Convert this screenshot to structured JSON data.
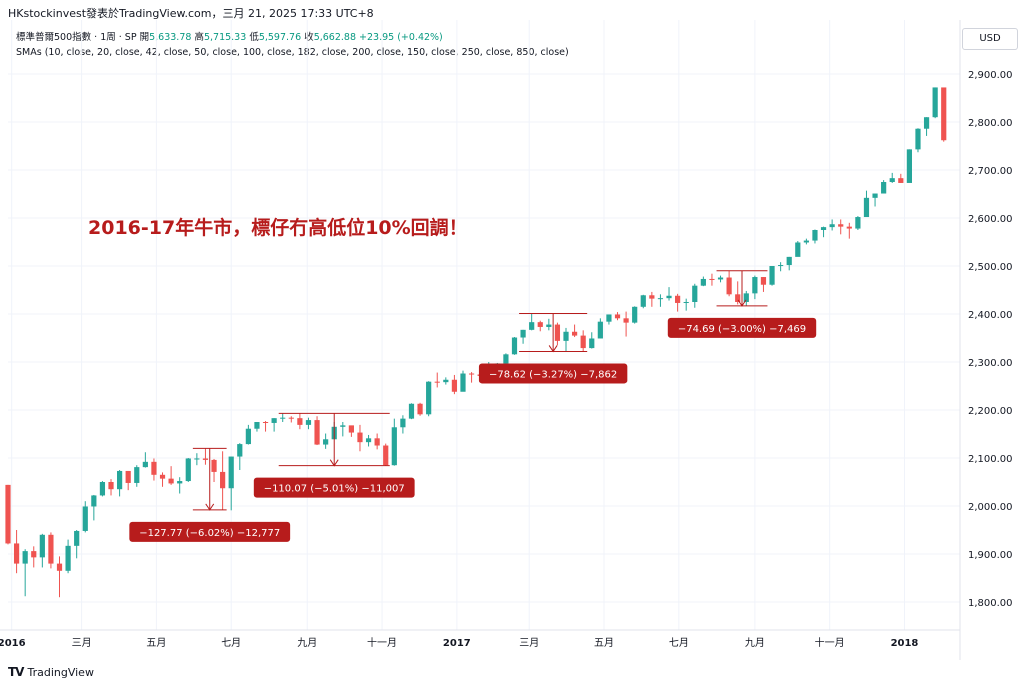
{
  "header": {
    "source_line": "HKstockinvest發表於TradingView.com，三月 21, 2025 17:33 UTC+8"
  },
  "legend": {
    "symbol": "標準普爾500指數 · 1周 · SP",
    "open_label": "開",
    "open_value": "5,633.78",
    "high_label": "高",
    "high_value": "5,715.33",
    "low_label": "低",
    "low_value": "5,597.76",
    "close_label": "收",
    "close_value": "5,662.88",
    "change_value": "+23.95 (+0.42%)",
    "sma_line": "SMAs (10, close, 20, close, 42, close, 50, close, 100, close, 182, close, 200, close, 150, close, 250, close, 850, close)"
  },
  "currency_button": "USD",
  "footer": {
    "logo_text": "TradingView",
    "logo_icon": "TV"
  },
  "colors": {
    "up": "#26a69a",
    "down": "#ef5350",
    "annotation": "#b71c1c",
    "measure_line": "#b71c1c",
    "grid": "#f0f3fa",
    "axis_text": "#131722"
  },
  "chart_data": {
    "type": "candlestick",
    "title": "2016-17年牛市，標仔冇高低位10%回調！",
    "ylim": [
      1750,
      2950
    ],
    "y_ticks": [
      1800,
      1900,
      2000,
      2100,
      2200,
      2300,
      2400,
      2500,
      2600,
      2700,
      2800,
      2900
    ],
    "y_tick_labels": [
      "1,800.00",
      "1,900.00",
      "2,000.00",
      "2,100.00",
      "2,200.00",
      "2,300.00",
      "2,400.00",
      "2,500.00",
      "2,600.00",
      "2,700.00",
      "2,800.00",
      "2,900.00"
    ],
    "x_ticks": [
      {
        "label": "2016",
        "date": "2016-01-04",
        "bold": true
      },
      {
        "label": "三月",
        "date": "2016-03-01",
        "bold": false
      },
      {
        "label": "五月",
        "date": "2016-05-01",
        "bold": false
      },
      {
        "label": "七月",
        "date": "2016-07-01",
        "bold": false
      },
      {
        "label": "九月",
        "date": "2016-09-01",
        "bold": false
      },
      {
        "label": "十一月",
        "date": "2016-11-01",
        "bold": false
      },
      {
        "label": "2017",
        "date": "2017-01-01",
        "bold": true
      },
      {
        "label": "三月",
        "date": "2017-03-01",
        "bold": false
      },
      {
        "label": "五月",
        "date": "2017-05-01",
        "bold": false
      },
      {
        "label": "七月",
        "date": "2017-07-01",
        "bold": false
      },
      {
        "label": "九月",
        "date": "2017-09-01",
        "bold": false
      },
      {
        "label": "十一月",
        "date": "2017-11-01",
        "bold": false
      },
      {
        "label": "2018",
        "date": "2018-01-01",
        "bold": true
      }
    ],
    "x_range": [
      "2016-01-01",
      "2018-02-12"
    ],
    "candles": [
      {
        "date": "2016-01-01",
        "o": 2044,
        "h": 2044,
        "c": 1922,
        "l": 1920
      },
      {
        "date": "2016-01-08",
        "o": 1922,
        "h": 1950,
        "c": 1880,
        "l": 1860
      },
      {
        "date": "2016-01-15",
        "o": 1880,
        "h": 1910,
        "c": 1906,
        "l": 1812
      },
      {
        "date": "2016-01-22",
        "o": 1906,
        "h": 1916,
        "c": 1893,
        "l": 1872
      },
      {
        "date": "2016-01-29",
        "o": 1893,
        "h": 1942,
        "c": 1940,
        "l": 1872
      },
      {
        "date": "2016-02-05",
        "o": 1940,
        "h": 1945,
        "c": 1880,
        "l": 1870
      },
      {
        "date": "2016-02-12",
        "o": 1880,
        "h": 1895,
        "c": 1865,
        "l": 1810
      },
      {
        "date": "2016-02-19",
        "o": 1865,
        "h": 1930,
        "c": 1917,
        "l": 1860
      },
      {
        "date": "2016-02-26",
        "o": 1917,
        "h": 1950,
        "c": 1948,
        "l": 1891
      },
      {
        "date": "2016-03-04",
        "o": 1948,
        "h": 2010,
        "c": 1999,
        "l": 1945
      },
      {
        "date": "2016-03-11",
        "o": 1999,
        "h": 2023,
        "c": 2022,
        "l": 1970
      },
      {
        "date": "2016-03-18",
        "o": 2022,
        "h": 2052,
        "c": 2050,
        "l": 2020
      },
      {
        "date": "2016-03-25",
        "o": 2050,
        "h": 2056,
        "c": 2035,
        "l": 2022
      },
      {
        "date": "2016-04-01",
        "o": 2035,
        "h": 2075,
        "c": 2073,
        "l": 2020
      },
      {
        "date": "2016-04-08",
        "o": 2073,
        "h": 2073,
        "c": 2048,
        "l": 2033
      },
      {
        "date": "2016-04-15",
        "o": 2048,
        "h": 2085,
        "c": 2081,
        "l": 2040
      },
      {
        "date": "2016-04-22",
        "o": 2081,
        "h": 2112,
        "c": 2092,
        "l": 2080
      },
      {
        "date": "2016-04-29",
        "o": 2092,
        "h": 2099,
        "c": 2065,
        "l": 2053
      },
      {
        "date": "2016-05-06",
        "o": 2065,
        "h": 2070,
        "c": 2057,
        "l": 2040
      },
      {
        "date": "2016-05-13",
        "o": 2057,
        "h": 2083,
        "c": 2047,
        "l": 2044
      },
      {
        "date": "2016-05-20",
        "o": 2047,
        "h": 2060,
        "c": 2052,
        "l": 2026
      },
      {
        "date": "2016-05-27",
        "o": 2052,
        "h": 2100,
        "c": 2099,
        "l": 2050
      },
      {
        "date": "2016-06-03",
        "o": 2099,
        "h": 2110,
        "c": 2099,
        "l": 2085
      },
      {
        "date": "2016-06-10",
        "o": 2099,
        "h": 2120,
        "c": 2096,
        "l": 2086
      },
      {
        "date": "2016-06-17",
        "o": 2096,
        "h": 2098,
        "c": 2071,
        "l": 2050
      },
      {
        "date": "2016-06-24",
        "o": 2071,
        "h": 2114,
        "c": 2037,
        "l": 1992
      },
      {
        "date": "2016-07-01",
        "o": 2037,
        "h": 2103,
        "c": 2103,
        "l": 1991
      },
      {
        "date": "2016-07-08",
        "o": 2103,
        "h": 2131,
        "c": 2129,
        "l": 2075
      },
      {
        "date": "2016-07-15",
        "o": 2129,
        "h": 2169,
        "c": 2161,
        "l": 2128
      },
      {
        "date": "2016-07-22",
        "o": 2161,
        "h": 2175,
        "c": 2175,
        "l": 2155
      },
      {
        "date": "2016-07-29",
        "o": 2175,
        "h": 2177,
        "c": 2173,
        "l": 2155
      },
      {
        "date": "2016-08-05",
        "o": 2173,
        "h": 2183,
        "c": 2183,
        "l": 2155
      },
      {
        "date": "2016-08-12",
        "o": 2183,
        "h": 2193,
        "c": 2184,
        "l": 2175
      },
      {
        "date": "2016-08-19",
        "o": 2184,
        "h": 2187,
        "c": 2183,
        "l": 2174
      },
      {
        "date": "2016-08-26",
        "o": 2183,
        "h": 2193,
        "c": 2169,
        "l": 2160
      },
      {
        "date": "2016-09-02",
        "o": 2169,
        "h": 2184,
        "c": 2179,
        "l": 2160
      },
      {
        "date": "2016-09-09",
        "o": 2179,
        "h": 2187,
        "c": 2128,
        "l": 2127
      },
      {
        "date": "2016-09-16",
        "o": 2128,
        "h": 2151,
        "c": 2139,
        "l": 2119
      },
      {
        "date": "2016-09-23",
        "o": 2139,
        "h": 2175,
        "c": 2165,
        "l": 2139
      },
      {
        "date": "2016-09-30",
        "o": 2165,
        "h": 2175,
        "c": 2168,
        "l": 2145
      },
      {
        "date": "2016-10-07",
        "o": 2168,
        "h": 2165,
        "c": 2153,
        "l": 2144
      },
      {
        "date": "2016-10-14",
        "o": 2153,
        "h": 2169,
        "c": 2133,
        "l": 2114
      },
      {
        "date": "2016-10-21",
        "o": 2133,
        "h": 2148,
        "c": 2141,
        "l": 2124
      },
      {
        "date": "2016-10-28",
        "o": 2141,
        "h": 2151,
        "c": 2126,
        "l": 2118
      },
      {
        "date": "2016-11-04",
        "o": 2126,
        "h": 2130,
        "c": 2085,
        "l": 2084
      },
      {
        "date": "2016-11-11",
        "o": 2085,
        "h": 2182,
        "c": 2164,
        "l": 2084
      },
      {
        "date": "2016-11-18",
        "o": 2164,
        "h": 2189,
        "c": 2182,
        "l": 2151
      },
      {
        "date": "2016-11-25",
        "o": 2182,
        "h": 2214,
        "c": 2213,
        "l": 2181
      },
      {
        "date": "2016-12-02",
        "o": 2213,
        "h": 2215,
        "c": 2191,
        "l": 2188
      },
      {
        "date": "2016-12-09",
        "o": 2191,
        "h": 2260,
        "c": 2259,
        "l": 2187
      },
      {
        "date": "2016-12-16",
        "o": 2259,
        "h": 2278,
        "c": 2258,
        "l": 2247
      },
      {
        "date": "2016-12-23",
        "o": 2258,
        "h": 2268,
        "c": 2263,
        "l": 2253
      },
      {
        "date": "2016-12-30",
        "o": 2263,
        "h": 2273,
        "c": 2238,
        "l": 2233
      },
      {
        "date": "2017-01-06",
        "o": 2238,
        "h": 2282,
        "c": 2276,
        "l": 2245
      },
      {
        "date": "2017-01-13",
        "o": 2276,
        "h": 2279,
        "c": 2274,
        "l": 2257
      },
      {
        "date": "2017-01-20",
        "o": 2274,
        "h": 2276,
        "c": 2271,
        "l": 2258
      },
      {
        "date": "2017-01-27",
        "o": 2271,
        "h": 2300,
        "c": 2294,
        "l": 2268
      },
      {
        "date": "2017-02-03",
        "o": 2294,
        "h": 2298,
        "c": 2297,
        "l": 2267
      },
      {
        "date": "2017-02-10",
        "o": 2297,
        "h": 2318,
        "c": 2316,
        "l": 2290
      },
      {
        "date": "2017-02-17",
        "o": 2316,
        "h": 2352,
        "c": 2351,
        "l": 2315
      },
      {
        "date": "2017-02-24",
        "o": 2351,
        "h": 2367,
        "c": 2367,
        "l": 2338
      },
      {
        "date": "2017-03-03",
        "o": 2367,
        "h": 2401,
        "c": 2383,
        "l": 2366
      },
      {
        "date": "2017-03-10",
        "o": 2383,
        "h": 2386,
        "c": 2373,
        "l": 2364
      },
      {
        "date": "2017-03-17",
        "o": 2373,
        "h": 2390,
        "c": 2378,
        "l": 2366
      },
      {
        "date": "2017-03-24",
        "o": 2378,
        "h": 2382,
        "c": 2344,
        "l": 2335
      },
      {
        "date": "2017-03-31",
        "o": 2344,
        "h": 2371,
        "c": 2363,
        "l": 2322
      },
      {
        "date": "2017-04-07",
        "o": 2363,
        "h": 2378,
        "c": 2355,
        "l": 2352
      },
      {
        "date": "2017-04-14",
        "o": 2355,
        "h": 2366,
        "c": 2329,
        "l": 2322
      },
      {
        "date": "2017-04-21",
        "o": 2329,
        "h": 2362,
        "c": 2349,
        "l": 2328
      },
      {
        "date": "2017-04-28",
        "o": 2349,
        "h": 2391,
        "c": 2384,
        "l": 2349
      },
      {
        "date": "2017-05-05",
        "o": 2384,
        "h": 2399,
        "c": 2399,
        "l": 2378
      },
      {
        "date": "2017-05-12",
        "o": 2399,
        "h": 2404,
        "c": 2391,
        "l": 2387
      },
      {
        "date": "2017-05-19",
        "o": 2391,
        "h": 2405,
        "c": 2382,
        "l": 2353
      },
      {
        "date": "2017-05-26",
        "o": 2382,
        "h": 2416,
        "c": 2415,
        "l": 2380
      },
      {
        "date": "2017-06-02",
        "o": 2415,
        "h": 2440,
        "c": 2439,
        "l": 2412
      },
      {
        "date": "2017-06-09",
        "o": 2439,
        "h": 2446,
        "c": 2432,
        "l": 2415
      },
      {
        "date": "2017-06-16",
        "o": 2432,
        "h": 2441,
        "c": 2433,
        "l": 2415
      },
      {
        "date": "2017-06-23",
        "o": 2433,
        "h": 2456,
        "c": 2438,
        "l": 2428
      },
      {
        "date": "2017-06-30",
        "o": 2438,
        "h": 2442,
        "c": 2423,
        "l": 2405
      },
      {
        "date": "2017-07-07",
        "o": 2423,
        "h": 2432,
        "c": 2425,
        "l": 2407
      },
      {
        "date": "2017-07-14",
        "o": 2425,
        "h": 2463,
        "c": 2459,
        "l": 2413
      },
      {
        "date": "2017-07-21",
        "o": 2459,
        "h": 2478,
        "c": 2473,
        "l": 2458
      },
      {
        "date": "2017-07-28",
        "o": 2473,
        "h": 2484,
        "c": 2472,
        "l": 2459
      },
      {
        "date": "2017-08-04",
        "o": 2472,
        "h": 2480,
        "c": 2476,
        "l": 2466
      },
      {
        "date": "2017-08-11",
        "o": 2476,
        "h": 2490,
        "c": 2441,
        "l": 2437
      },
      {
        "date": "2017-08-18",
        "o": 2441,
        "h": 2468,
        "c": 2425,
        "l": 2420
      },
      {
        "date": "2017-08-25",
        "o": 2425,
        "h": 2448,
        "c": 2443,
        "l": 2417
      },
      {
        "date": "2017-09-01",
        "o": 2443,
        "h": 2480,
        "c": 2477,
        "l": 2431
      },
      {
        "date": "2017-09-08",
        "o": 2477,
        "h": 2477,
        "c": 2461,
        "l": 2446
      },
      {
        "date": "2017-09-15",
        "o": 2461,
        "h": 2500,
        "c": 2500,
        "l": 2459
      },
      {
        "date": "2017-09-22",
        "o": 2500,
        "h": 2508,
        "c": 2502,
        "l": 2489
      },
      {
        "date": "2017-09-29",
        "o": 2502,
        "h": 2519,
        "c": 2519,
        "l": 2491
      },
      {
        "date": "2017-10-06",
        "o": 2519,
        "h": 2552,
        "c": 2549,
        "l": 2520
      },
      {
        "date": "2017-10-13",
        "o": 2549,
        "h": 2557,
        "c": 2553,
        "l": 2545
      },
      {
        "date": "2017-10-20",
        "o": 2553,
        "h": 2576,
        "c": 2575,
        "l": 2547
      },
      {
        "date": "2017-10-27",
        "o": 2575,
        "h": 2582,
        "c": 2581,
        "l": 2560
      },
      {
        "date": "2017-11-03",
        "o": 2581,
        "h": 2597,
        "c": 2587,
        "l": 2574
      },
      {
        "date": "2017-11-10",
        "o": 2587,
        "h": 2597,
        "c": 2582,
        "l": 2566
      },
      {
        "date": "2017-11-17",
        "o": 2582,
        "h": 2590,
        "c": 2578,
        "l": 2557
      },
      {
        "date": "2017-11-24",
        "o": 2578,
        "h": 2604,
        "c": 2602,
        "l": 2575
      },
      {
        "date": "2017-12-01",
        "o": 2602,
        "h": 2657,
        "c": 2642,
        "l": 2605
      },
      {
        "date": "2017-12-08",
        "o": 2642,
        "h": 2651,
        "c": 2651,
        "l": 2624
      },
      {
        "date": "2017-12-15",
        "o": 2651,
        "h": 2679,
        "c": 2675,
        "l": 2652
      },
      {
        "date": "2017-12-22",
        "o": 2675,
        "h": 2694,
        "c": 2683,
        "l": 2673
      },
      {
        "date": "2017-12-29",
        "o": 2683,
        "h": 2692,
        "c": 2673,
        "l": 2673
      },
      {
        "date": "2018-01-05",
        "o": 2673,
        "h": 2743,
        "c": 2743,
        "l": 2682
      },
      {
        "date": "2018-01-12",
        "o": 2743,
        "h": 2787,
        "c": 2786,
        "l": 2737
      },
      {
        "date": "2018-01-19",
        "o": 2786,
        "h": 2810,
        "c": 2810,
        "l": 2771
      },
      {
        "date": "2018-01-26",
        "o": 2810,
        "h": 2872,
        "c": 2872,
        "l": 2808
      },
      {
        "date": "2018-02-02",
        "o": 2872,
        "h": 2863,
        "c": 2762,
        "l": 2759
      }
    ],
    "annotations": [
      {
        "label": "−127.77 (−6.02%) −12,777",
        "from_date": "2016-06-03",
        "to_date": "2016-06-24",
        "high": 2120,
        "low": 1992
      },
      {
        "label": "−110.07 (−5.01%) −11,007",
        "from_date": "2016-08-12",
        "to_date": "2016-11-04",
        "high": 2193,
        "low": 2084
      },
      {
        "label": "−78.62 (−3.27%) −7,862",
        "from_date": "2017-02-24",
        "to_date": "2017-04-14",
        "high": 2401,
        "low": 2322
      },
      {
        "label": "−74.69 (−3.00%) −7,469",
        "from_date": "2017-08-04",
        "to_date": "2017-09-08",
        "high": 2490,
        "low": 2417
      }
    ]
  }
}
